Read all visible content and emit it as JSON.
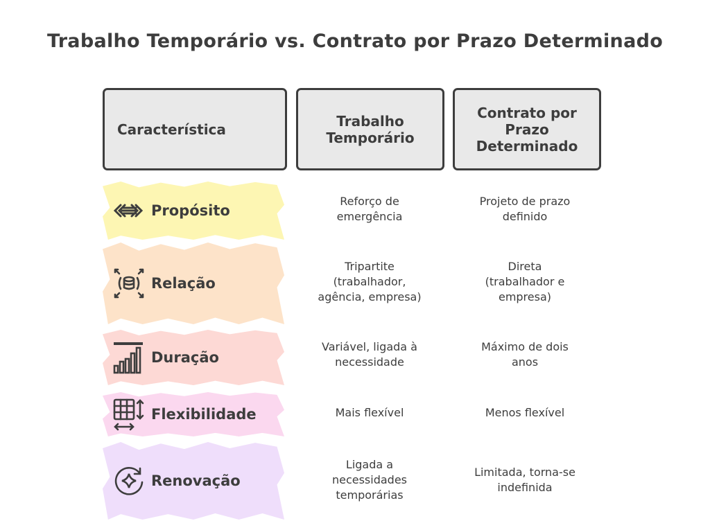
{
  "title": "Trabalho Temporário vs. Contrato por Prazo Determinado",
  "headers": [
    "Característica",
    "Trabalho\nTemporário",
    "Contrato por\nPrazo\nDeterminado"
  ],
  "rows": [
    {
      "label": "Propósito",
      "icon": "double-arrows-icon",
      "color": "#fdf6b3",
      "temp": "Reforço de\nemergência",
      "fixed": "Projeto de prazo\ndefinido"
    },
    {
      "label": "Relação",
      "icon": "database-expand-icon",
      "color": "#fde3c9",
      "temp": "Tripartite\n(trabalhador,\nagência, empresa)",
      "fixed": "Direta\n(trabalhador e\nempresa)"
    },
    {
      "label": "Duração",
      "icon": "bar-chart-icon",
      "color": "#fdd9d5",
      "temp": "Variável, ligada à\nnecessidade",
      "fixed": "Máximo de dois\nanos"
    },
    {
      "label": "Flexibilidade",
      "icon": "table-resize-icon",
      "color": "#fbd8ef",
      "temp": "Mais flexível",
      "fixed": "Menos flexível"
    },
    {
      "label": "Renovação",
      "icon": "refresh-sparkle-icon",
      "color": "#efdefb",
      "temp": "Ligada a\nnecessidades\ntemporárias",
      "fixed": "Limitada, torna-se\nindefinida"
    }
  ]
}
